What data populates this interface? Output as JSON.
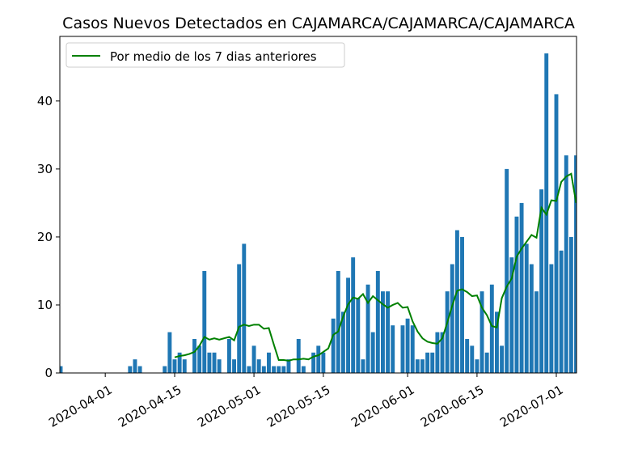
{
  "chart_data": {
    "type": "bar",
    "title": "Casos Nuevos Detectados en CAJAMARCA/CAJAMARCA/CAJAMARCA",
    "xlabel": "",
    "ylabel": "",
    "start_date": "2020-03-23",
    "ylim": [
      0,
      49.5
    ],
    "yticks": [
      0,
      10,
      20,
      30,
      40
    ],
    "xticks": [
      "2020-04-01",
      "2020-04-15",
      "2020-05-01",
      "2020-05-15",
      "2020-06-01",
      "2020-06-15",
      "2020-07-01"
    ],
    "grid": false,
    "legend_position": "top-left",
    "bar_color": "#1f77b4",
    "line_color": "#008000",
    "series": [
      {
        "name": "",
        "type": "bar",
        "values": [
          1,
          0,
          0,
          0,
          0,
          0,
          0,
          0,
          0,
          0,
          0,
          0,
          0,
          0,
          1,
          2,
          1,
          0,
          0,
          0,
          0,
          1,
          6,
          2,
          3,
          2,
          0,
          5,
          4,
          15,
          3,
          3,
          2,
          0,
          5,
          2,
          16,
          19,
          1,
          4,
          2,
          1,
          3,
          1,
          1,
          1,
          2,
          0,
          5,
          1,
          0,
          3,
          4,
          3,
          0,
          8,
          15,
          9,
          14,
          17,
          11,
          2,
          13,
          6,
          15,
          12,
          12,
          7,
          0,
          7,
          8,
          7,
          2,
          2,
          3,
          3,
          6,
          6,
          12,
          16,
          21,
          20,
          5,
          4,
          2,
          12,
          3,
          13,
          9,
          4,
          30,
          17,
          23,
          25,
          19,
          16,
          12,
          27,
          47,
          16,
          41,
          18,
          32,
          20,
          32,
          14
        ]
      },
      {
        "name": "Por medio de los 7 dias anteriores",
        "type": "line",
        "start_index": 23,
        "values": [
          2.3,
          2.5,
          2.6,
          2.8,
          3.1,
          4.0,
          5.3,
          4.9,
          5.1,
          4.9,
          5.1,
          5.3,
          4.8,
          6.8,
          7.1,
          6.9,
          7.1,
          7.1,
          6.5,
          6.6,
          4.2,
          1.9,
          1.9,
          1.8,
          2.0,
          2.0,
          2.1,
          2.0,
          2.4,
          2.6,
          3.1,
          3.6,
          5.6,
          6.1,
          8.3,
          10.1,
          11.1,
          10.9,
          11.6,
          10.3,
          11.3,
          10.7,
          10.1,
          9.6,
          10.0,
          10.3,
          9.6,
          9.7,
          7.6,
          6.1,
          5.1,
          4.6,
          4.4,
          4.3,
          5.1,
          7.4,
          9.9,
          12.1,
          12.3,
          11.9,
          11.3,
          11.4,
          9.6,
          8.5,
          6.9,
          6.7,
          11.0,
          12.7,
          13.9,
          17.1,
          18.3,
          19.3,
          20.3,
          19.9,
          24.3,
          23.3,
          25.4,
          25.3,
          28.1,
          28.9,
          29.3,
          25.0
        ]
      }
    ]
  }
}
